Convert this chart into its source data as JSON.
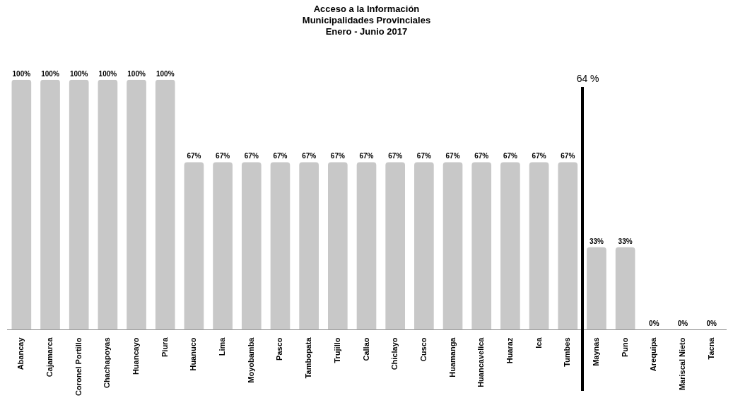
{
  "chart_data": {
    "type": "bar",
    "title": "Acceso a la Información\nMunicipalidades Provinciales\nEnero - Junio 2017",
    "categories": [
      "Abancay",
      "Cajamarca",
      "Coronel Portillo",
      "Chachapoyas",
      "Huancayo",
      "Piura",
      "Huanuco",
      "Lima",
      "Moyobamba",
      "Pasco",
      "Tambopata",
      "Trujillo",
      "Callao",
      "Chiclayo",
      "Cusco",
      "Huamanga",
      "Huancavelica",
      "Huaraz",
      "Ica",
      "Tumbes",
      "Maynas",
      "Puno",
      "Arequipa",
      "Mariscal Nieto",
      "Tacna"
    ],
    "values": [
      100,
      100,
      100,
      100,
      100,
      100,
      67,
      67,
      67,
      67,
      67,
      67,
      67,
      67,
      67,
      67,
      67,
      67,
      67,
      67,
      33,
      33,
      0,
      0,
      0
    ],
    "value_labels": [
      "100%",
      "100%",
      "100%",
      "100%",
      "100%",
      "100%",
      "67%",
      "67%",
      "67%",
      "67%",
      "67%",
      "67%",
      "67%",
      "67%",
      "67%",
      "67%",
      "67%",
      "67%",
      "67%",
      "67%",
      "33%",
      "33%",
      "0%",
      "0%",
      "0%"
    ],
    "color": "#c8c8c8",
    "annotations": [
      "64 %"
    ],
    "grid": false,
    "legend": false
  }
}
